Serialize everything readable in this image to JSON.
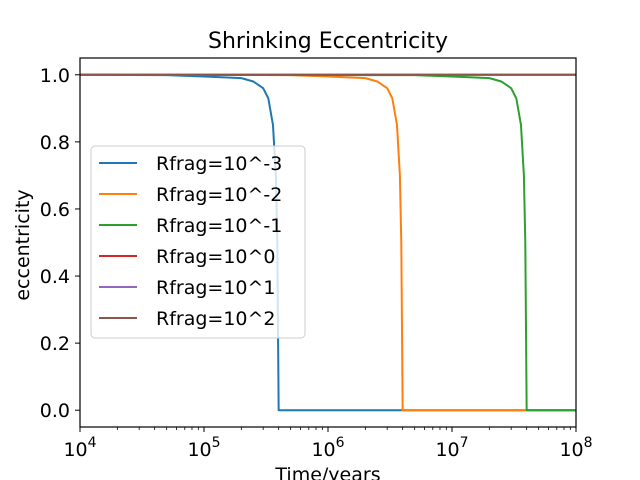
{
  "chart_data": {
    "type": "line",
    "title": "Shrinking Eccentricity",
    "xlabel": "Time/years",
    "ylabel": "eccentricity",
    "xscale": "log",
    "xlim": [
      10000,
      100000000
    ],
    "ylim": [
      -0.05,
      1.05
    ],
    "xticks": [
      {
        "value": 10000,
        "base": "10",
        "exp": "4"
      },
      {
        "value": 100000,
        "base": "10",
        "exp": "5"
      },
      {
        "value": 1000000,
        "base": "10",
        "exp": "6"
      },
      {
        "value": 10000000,
        "base": "10",
        "exp": "7"
      },
      {
        "value": 100000000,
        "base": "10",
        "exp": "8"
      }
    ],
    "yticks": [
      {
        "value": 0.0,
        "label": "0.0"
      },
      {
        "value": 0.2,
        "label": "0.2"
      },
      {
        "value": 0.4,
        "label": "0.4"
      },
      {
        "value": 0.6,
        "label": "0.6"
      },
      {
        "value": 0.8,
        "label": "0.8"
      },
      {
        "value": 1.0,
        "label": "1.0"
      }
    ],
    "grid": false,
    "legend_position": "center-left",
    "series": [
      {
        "name": "Rfrag=10^-3",
        "color": "#1f77b4",
        "x": [
          10000,
          50000,
          100000,
          200000,
          250000,
          300000,
          330000,
          360000,
          380000,
          390000,
          395000,
          400000,
          1000000,
          10000000,
          100000000
        ],
        "y": [
          1.0,
          0.999,
          0.995,
          0.99,
          0.98,
          0.96,
          0.93,
          0.85,
          0.7,
          0.5,
          0.25,
          0.0,
          0.0,
          0.0,
          0.0
        ]
      },
      {
        "name": "Rfrag=10^-2",
        "color": "#ff7f0e",
        "x": [
          10000,
          500000,
          1000000,
          2000000,
          2500000,
          3000000,
          3300000,
          3600000,
          3800000,
          3900000,
          3950000,
          4000000,
          10000000,
          100000000
        ],
        "y": [
          1.0,
          0.999,
          0.995,
          0.99,
          0.98,
          0.96,
          0.93,
          0.85,
          0.7,
          0.5,
          0.25,
          0.0,
          0.0,
          0.0
        ]
      },
      {
        "name": "Rfrag=10^-1",
        "color": "#2ca02c",
        "x": [
          10000,
          5000000,
          10000000,
          20000000,
          25000000,
          30000000,
          33000000,
          36000000,
          38000000,
          39000000,
          39500000,
          40000000,
          100000000
        ],
        "y": [
          1.0,
          0.999,
          0.995,
          0.99,
          0.98,
          0.96,
          0.93,
          0.85,
          0.7,
          0.5,
          0.25,
          0.0,
          0.0
        ]
      },
      {
        "name": "Rfrag=10^0",
        "color": "#d62728",
        "x": [
          10000,
          100000000
        ],
        "y": [
          1.0,
          1.0
        ]
      },
      {
        "name": "Rfrag=10^1",
        "color": "#9467bd",
        "x": [
          10000,
          100000000
        ],
        "y": [
          1.0,
          1.0
        ]
      },
      {
        "name": "Rfrag=10^2",
        "color": "#8c564b",
        "x": [
          10000,
          100000000
        ],
        "y": [
          1.0,
          1.0
        ]
      }
    ]
  }
}
